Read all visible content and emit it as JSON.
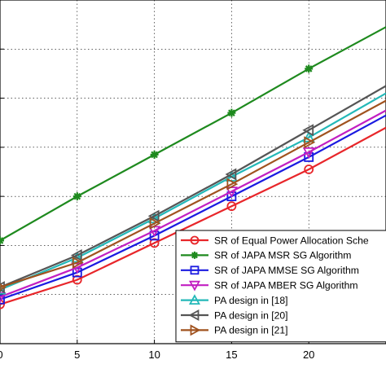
{
  "chart_data": {
    "type": "line",
    "title": "",
    "xlabel": "",
    "ylabel": "",
    "x": [
      0,
      5,
      10,
      15,
      20,
      25
    ],
    "xticks": [
      0,
      5,
      10,
      15,
      20
    ],
    "xtick_labels": [
      "0",
      "5",
      "10",
      "15",
      "20"
    ],
    "xlim": [
      0,
      25
    ],
    "ylim": [
      0,
      7
    ],
    "yticks": [
      1,
      2,
      3,
      4,
      5,
      6
    ],
    "grid": true,
    "legend_position": "bottom-right",
    "series": [
      {
        "name": "SR of Equal Power Allocation Sche",
        "color": "#e8262a",
        "marker": "circle",
        "values": [
          0.8,
          1.3,
          2.05,
          2.8,
          3.55,
          4.4
        ]
      },
      {
        "name": "SR of JAPA MSR SG Algorithm",
        "color": "#1e8a1e",
        "marker": "star",
        "values": [
          2.1,
          3.0,
          3.85,
          4.7,
          5.6,
          6.45
        ]
      },
      {
        "name": "SR of JAPA MMSE SG Algorithm",
        "color": "#1a1ae0",
        "marker": "square",
        "values": [
          0.9,
          1.45,
          2.2,
          3.0,
          3.8,
          4.65
        ]
      },
      {
        "name": "SR of JAPA MBER SG Algorithm",
        "color": "#c21fc2",
        "marker": "triangle-down",
        "values": [
          0.95,
          1.55,
          2.3,
          3.1,
          3.9,
          4.75
        ]
      },
      {
        "name": "PA design in [18]",
        "color": "#23b8b8",
        "marker": "triangle-up",
        "values": [
          1.1,
          1.75,
          2.55,
          3.4,
          4.2,
          5.1
        ]
      },
      {
        "name": "PA design in [20]",
        "color": "#555555",
        "marker": "triangle-left",
        "values": [
          1.15,
          1.8,
          2.6,
          3.45,
          4.35,
          5.25
        ]
      },
      {
        "name": "PA design in [21]",
        "color": "#a0521e",
        "marker": "triangle-right",
        "values": [
          1.15,
          1.65,
          2.45,
          3.25,
          4.1,
          4.95
        ]
      }
    ]
  }
}
